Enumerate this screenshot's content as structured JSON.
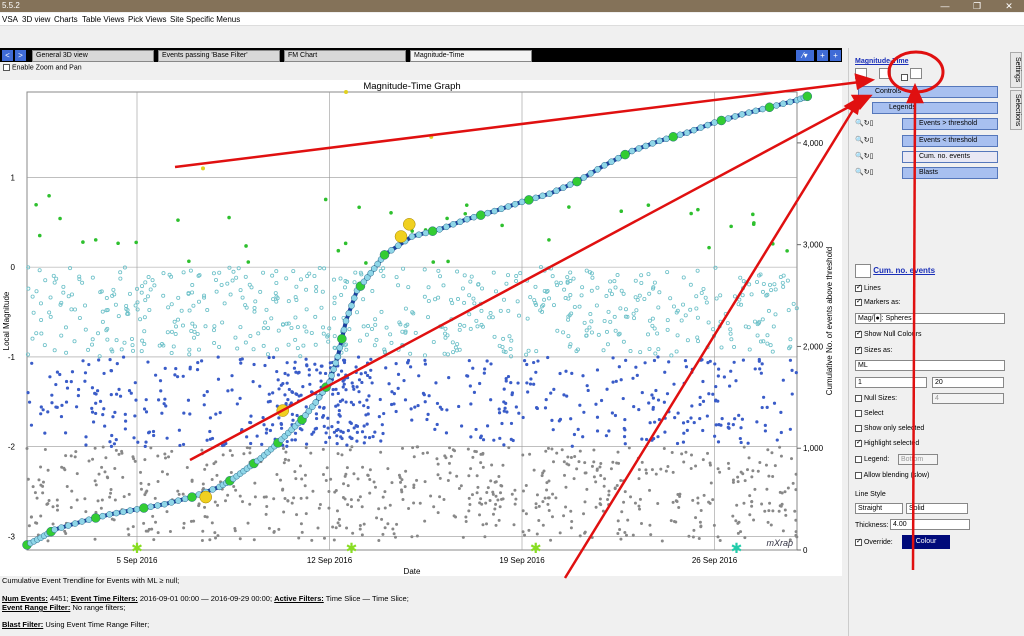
{
  "app": {
    "version": "5.5.2"
  },
  "menu": [
    "VSA",
    "3D view",
    "Charts",
    "Table Views",
    "Pick Views",
    "Site Specific Menus"
  ],
  "tabs": [
    "General 3D view",
    "Events passing 'Base Filter'",
    "FM Chart",
    "Magnitude-Time"
  ],
  "toolbar": {
    "zoom_pan": "Enable Zoom and Pan"
  },
  "chart_data": {
    "type": "scatter",
    "title": "Magnitude-Time Graph",
    "xlabel": "Date",
    "ylabel": "Local Magnitude",
    "y2label": "Cumulative No. of events above threshold",
    "x_ticks": [
      "5 Sep 2016",
      "12 Sep 2016",
      "19 Sep 2016",
      "26 Sep 2016"
    ],
    "xlim": [
      "2016-09-01",
      "2016-09-29"
    ],
    "ylim": [
      -3.15,
      1.95
    ],
    "y_ticks": [
      "1",
      "0",
      "-1",
      "-2",
      "-3"
    ],
    "y2lim": [
      0,
      4500
    ],
    "y2_ticks": [
      "0",
      "1,000",
      "2,000",
      "3,000",
      "4,000"
    ],
    "threshold": -1,
    "series": [
      {
        "name": "Events > threshold",
        "color": "#a8dde0"
      },
      {
        "name": "Events < threshold",
        "color": "#3a5cc8"
      },
      {
        "name": "Cum. no. events",
        "color": "#8fd6e8"
      },
      {
        "name": "Blasts",
        "color": "#9bdc2e"
      }
    ],
    "cumulative": {
      "x": [
        0,
        0.5,
        1,
        2,
        3,
        4,
        5,
        6,
        7,
        7.5,
        8,
        8.5,
        9,
        9.5,
        10,
        10.5,
        11,
        11.3,
        11.6,
        12,
        12.5,
        13,
        14,
        15,
        16,
        17,
        18,
        19,
        20,
        21,
        22,
        23,
        24,
        25,
        26,
        27,
        28,
        28.5
      ],
      "y": [
        50,
        120,
        200,
        280,
        350,
        400,
        450,
        520,
        620,
        700,
        800,
        900,
        1020,
        1150,
        1280,
        1450,
        1650,
        1900,
        2250,
        2550,
        2720,
        2900,
        3080,
        3150,
        3250,
        3330,
        3420,
        3500,
        3620,
        3780,
        3920,
        4020,
        4100,
        4200,
        4280,
        4350,
        4420,
        4470
      ]
    },
    "blast_markers_x": [
      4,
      11.8,
      18.5,
      25.8
    ],
    "watermark": "mXrap"
  },
  "info": {
    "trendline": "Cumulative Event Trendline for Events with ML ≥ null;",
    "num_events_label": "Num Events:",
    "num_events": "4451;",
    "time_filters_label": "Event Time Filters:",
    "time_filters": "2016-09-01 00:00 — 2016-09-29 00:00;",
    "active_filters_label": "Active Filters:",
    "active_filters": "Time Slice — Time Slice;",
    "range_filter_label": "Event Range Filter:",
    "range_filter": "No range filters;",
    "blast_filter_label": "Blast Filter:",
    "blast_filter": "Using Event Time Range Filter;"
  },
  "panel": {
    "title": "Magnitude-Time",
    "vtabs": [
      "Settings",
      "Selections"
    ],
    "layers": [
      "Controls",
      "Legends",
      "Events > threshold",
      "Events < threshold",
      "Cum. no. events",
      "Blasts"
    ],
    "selected_layer": "Cum. no. events",
    "lines": "Lines",
    "markers_as": "Markers as:",
    "marker_field": "Mag/[●]: Spheres",
    "show_null_colours": "Show Null Colours",
    "sizes_as": "Sizes as:",
    "size_field": "ML",
    "size_min": "1",
    "size_max": "20",
    "null_sizes": "Null Sizes:",
    "null_size_val": "4",
    "select": "Select",
    "show_only_selected": "Show only selected",
    "highlight_selected": "Highlight selected",
    "legend": "Legend:",
    "legend_pos": "Bottom",
    "allow_blending": "Allow blending (slow)",
    "line_style": "Line Style",
    "line_type": "Straight",
    "line_pattern": "Solid",
    "thickness_label": "Thickness:",
    "thickness": "4.00",
    "override": "Override:",
    "colour_btn": "Colour"
  }
}
